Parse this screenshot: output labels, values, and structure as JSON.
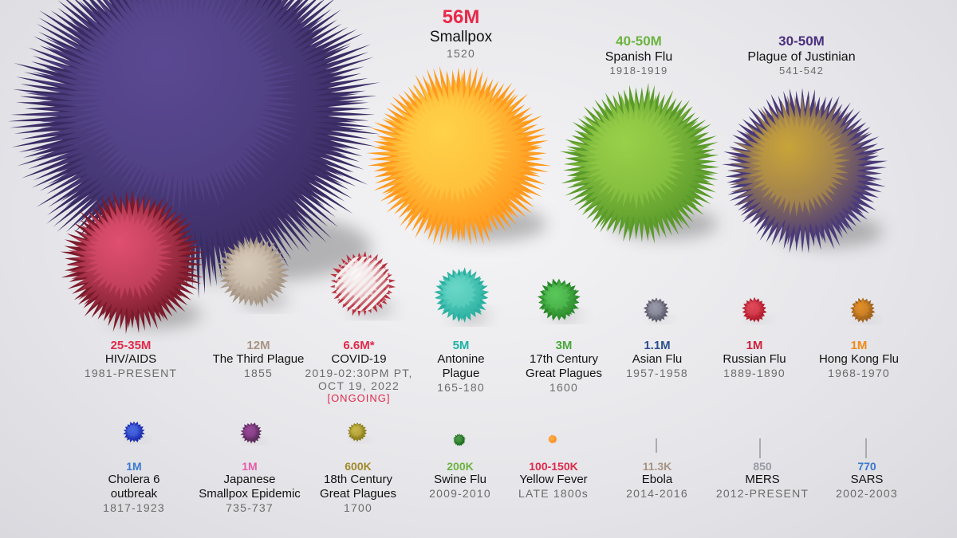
{
  "chart_data": {
    "type": "bubble",
    "title": "",
    "xlabel": "",
    "ylabel": "",
    "items": [
      {
        "key": "black_death",
        "name": "",
        "years": "",
        "deaths": "",
        "deaths_value": 200,
        "color": "#3a2c63",
        "spike": "#5a4a93"
      },
      {
        "key": "smallpox",
        "name": "Smallpox",
        "years": "1520",
        "deaths": "56M",
        "deaths_value": 56,
        "color": "#ff9a1e",
        "spike": "#ffd24a"
      },
      {
        "key": "spanish_flu",
        "name": "Spanish Flu",
        "years": "1918-1919",
        "deaths": "40-50M",
        "deaths_value": 45,
        "color": "#5a9a2a",
        "spike": "#9ad04a"
      },
      {
        "key": "justinian",
        "name": "Plague of Justinian",
        "years": "541-542",
        "deaths": "30-50M",
        "deaths_value": 40,
        "color": "#4a3a78",
        "spike": "#c9a43a"
      },
      {
        "key": "hiv",
        "name": "HIV/AIDS",
        "years": "1981-PRESENT",
        "deaths": "25-35M",
        "deaths_value": 30,
        "color": "#7a1a2a",
        "spike": "#e05070"
      },
      {
        "key": "third_plague",
        "name": "The Third Plague",
        "years": "1855",
        "deaths": "12M",
        "deaths_value": 12,
        "color": "#a89888",
        "spike": "#d8cab8"
      },
      {
        "key": "covid",
        "name": "COVID-19",
        "years": "2019-02:30PM PT,",
        "years2": "OCT 19, 2022",
        "status": "[ONGOING]",
        "deaths": "6.6M*",
        "deaths_value": 6.6,
        "color": "#b8303e",
        "spike": "#ffffff"
      },
      {
        "key": "antonine",
        "name": "Antonine",
        "name2": "Plague",
        "years": "165-180",
        "deaths": "5M",
        "deaths_value": 5,
        "color": "#2ab0a0",
        "spike": "#6ad8c8"
      },
      {
        "key": "17th",
        "name": "17th Century",
        "name2": "Great Plagues",
        "years": "1600",
        "deaths": "3M",
        "deaths_value": 3,
        "color": "#2a8a2a",
        "spike": "#5ac85a"
      },
      {
        "key": "asian_flu",
        "name": "Asian Flu",
        "years": "1957-1958",
        "deaths": "1.1M",
        "deaths_value": 1.1,
        "color": "#5a5a6a",
        "spike": "#9a9aaa"
      },
      {
        "key": "russian_flu",
        "name": "Russian Flu",
        "years": "1889-1890",
        "deaths": "1M",
        "deaths_value": 1,
        "color": "#b01a2a",
        "spike": "#e04a5a"
      },
      {
        "key": "hong_kong",
        "name": "Hong Kong Flu",
        "years": "1968-1970",
        "deaths": "1M",
        "deaths_value": 1,
        "color": "#a0601a",
        "spike": "#e0902a"
      },
      {
        "key": "cholera6",
        "name": "Cholera 6",
        "name2": "outbreak",
        "years": "1817-1923",
        "deaths": "1M",
        "deaths_value": 1,
        "color": "#1a2ab0",
        "spike": "#4a6ae0"
      },
      {
        "key": "japanese_smallpox",
        "name": "Japanese",
        "name2": "Smallpox Epidemic",
        "years": "735-737",
        "deaths": "1M",
        "deaths_value": 1,
        "color": "#5a2a5a",
        "spike": "#9a4a9a"
      },
      {
        "key": "18th",
        "name": "18th Century",
        "name2": "Great Plagues",
        "years": "1700",
        "deaths": "600K",
        "deaths_value": 0.6,
        "color": "#8a7a1a",
        "spike": "#c8b84a"
      },
      {
        "key": "swine_flu",
        "name": "Swine Flu",
        "years": "2009-2010",
        "deaths": "200K",
        "deaths_value": 0.2,
        "color": "#1a6a1a",
        "spike": "#4a9a4a"
      },
      {
        "key": "yellow_fever",
        "name": "Yellow Fever",
        "years": "LATE 1800s",
        "deaths": "100-150K",
        "deaths_value": 0.125,
        "color": "#ff8a1a",
        "spike": "#ffb04a"
      },
      {
        "key": "ebola",
        "name": "Ebola",
        "years": "2014-2016",
        "deaths": "11.3K",
        "deaths_value": 0.0113,
        "color": "#999999",
        "spike": "#bbbbbb"
      },
      {
        "key": "mers",
        "name": "MERS",
        "years": "2012-PRESENT",
        "deaths": "850",
        "deaths_value": 0.00085,
        "color": "#999999",
        "spike": "#bbbbbb"
      },
      {
        "key": "sars",
        "name": "SARS",
        "years": "2002-2003",
        "deaths": "770",
        "deaths_value": 0.00077,
        "color": "#999999",
        "spike": "#bbbbbb"
      }
    ]
  },
  "colors": {
    "smallpox": "#e8294a",
    "spanish_flu": "#6cb33f",
    "justinian": "#4b2f7f",
    "hiv": "#e0294a",
    "third_plague": "#a89484",
    "covid": "#e0294a",
    "antonine": "#1fb3a4",
    "17th": "#4aa63a",
    "asian_flu": "#2f4f8f",
    "russian_flu": "#d01f3a",
    "hong_kong": "#f08a1a",
    "cholera6": "#3a7ad0",
    "japanese_smallpox": "#e85ca8",
    "18th": "#a08a2a",
    "swine_flu": "#6cb33f",
    "yellow_fever": "#e0294a",
    "ebola": "#a89484",
    "mers": "#9a9aa4",
    "sars": "#3a7ad0"
  }
}
